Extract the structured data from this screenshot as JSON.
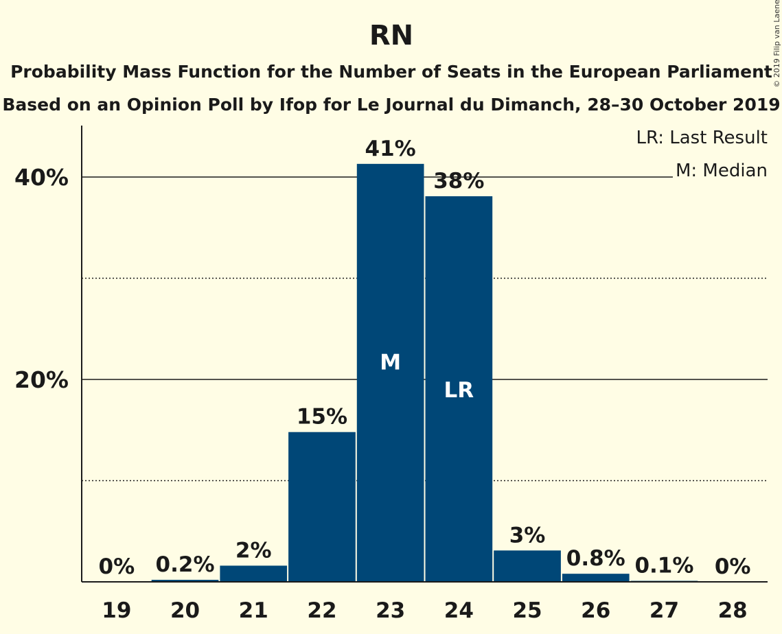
{
  "chart_data": {
    "type": "bar",
    "title": "RN",
    "subtitle_1": "Probability Mass Function for the Number of Seats in the European Parliament",
    "subtitle_2": "Based on an Opinion Poll by Ifop for Le Journal du Dimanch, 28–30 October 2019",
    "copyright": "© 2019 Filip van Laenen",
    "legend": [
      "LR: Last Result",
      "M: Median"
    ],
    "legend_position": "top-right",
    "categories": [
      "19",
      "20",
      "21",
      "22",
      "23",
      "24",
      "25",
      "26",
      "27",
      "28"
    ],
    "values": [
      0,
      0.2,
      1.6,
      14.8,
      41.3,
      38.1,
      3.1,
      0.8,
      0.1,
      0
    ],
    "data_labels": [
      "0%",
      "0.2%",
      "2%",
      "15%",
      "41%",
      "38%",
      "3%",
      "0.8%",
      "0.1%",
      "0%"
    ],
    "bar_markers": {
      "23": "M",
      "24": "LR"
    },
    "ylim": [
      0,
      45
    ],
    "yticks": [
      {
        "value": 20,
        "label": "20%"
      },
      {
        "value": 40,
        "label": "40%"
      }
    ],
    "minor_gridlines": [
      10,
      30
    ],
    "colors": {
      "bar": "#004777",
      "background": "#FFFDE5",
      "text": "#1a1a1a"
    }
  }
}
